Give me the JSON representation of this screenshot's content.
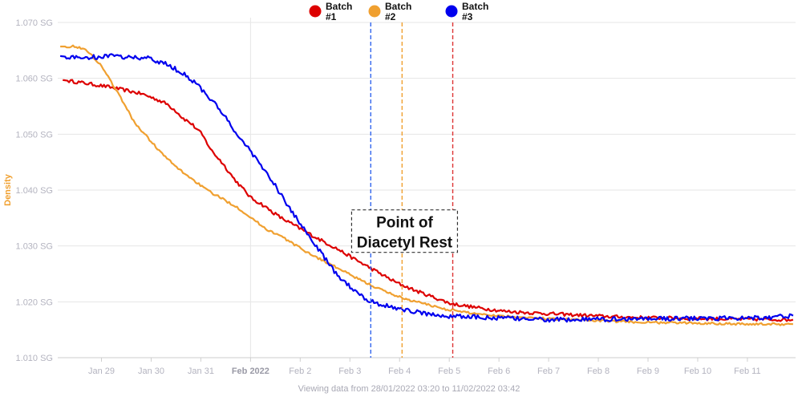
{
  "chart_data": {
    "type": "line",
    "title": "",
    "xlabel": "",
    "ylabel": "Density",
    "ylabel_color": "#f0a030",
    "footer": "Viewing data from 28/01/2022 03:20 to 11/02/2022 03:42",
    "x_range_days": [
      0,
      14.85
    ],
    "x_ticks": [
      {
        "label": "Jan 29",
        "day": 0.88,
        "bold": false
      },
      {
        "label": "Jan 30",
        "day": 1.88,
        "bold": false
      },
      {
        "label": "Jan 31",
        "day": 2.88,
        "bold": false
      },
      {
        "label": "Feb 2022",
        "day": 3.88,
        "bold": true
      },
      {
        "label": "Feb 2",
        "day": 4.88,
        "bold": false
      },
      {
        "label": "Feb 3",
        "day": 5.88,
        "bold": false
      },
      {
        "label": "Feb 4",
        "day": 6.88,
        "bold": false
      },
      {
        "label": "Feb 5",
        "day": 7.88,
        "bold": false
      },
      {
        "label": "Feb 6",
        "day": 8.88,
        "bold": false
      },
      {
        "label": "Feb 7",
        "day": 9.88,
        "bold": false
      },
      {
        "label": "Feb 8",
        "day": 10.88,
        "bold": false
      },
      {
        "label": "Feb 9",
        "day": 11.88,
        "bold": false
      },
      {
        "label": "Feb 10",
        "day": 12.88,
        "bold": false
      },
      {
        "label": "Feb 11",
        "day": 13.88,
        "bold": false
      }
    ],
    "ylim": [
      1.01,
      1.07
    ],
    "y_ticks": [
      {
        "label": "1.010 SG",
        "value": 1.01
      },
      {
        "label": "1.020 SG",
        "value": 1.02
      },
      {
        "label": "1.030 SG",
        "value": 1.03
      },
      {
        "label": "1.040 SG",
        "value": 1.04
      },
      {
        "label": "1.050 SG",
        "value": 1.05
      },
      {
        "label": "1.060 SG",
        "value": 1.06
      },
      {
        "label": "1.070 SG",
        "value": 1.07
      }
    ],
    "grid": true,
    "legend_position": "top-center",
    "series": [
      {
        "name": "Batch #1",
        "label_lines": [
          "Batch",
          "#1"
        ],
        "color": "#dd0000",
        "noise": 0.0003,
        "points": [
          [
            0.1,
            1.0597
          ],
          [
            0.5,
            1.0592
          ],
          [
            1.0,
            1.0585
          ],
          [
            1.4,
            1.0578
          ],
          [
            1.7,
            1.0572
          ],
          [
            2.0,
            1.0562
          ],
          [
            2.2,
            1.0554
          ],
          [
            2.4,
            1.054
          ],
          [
            2.5,
            1.053
          ],
          [
            2.7,
            1.0518
          ],
          [
            2.9,
            1.05
          ],
          [
            3.1,
            1.047
          ],
          [
            3.3,
            1.045
          ],
          [
            3.55,
            1.042
          ],
          [
            3.7,
            1.0405
          ],
          [
            3.9,
            1.0385
          ],
          [
            4.1,
            1.0375
          ],
          [
            4.3,
            1.0362
          ],
          [
            4.5,
            1.035
          ],
          [
            4.8,
            1.0335
          ],
          [
            5.2,
            1.0315
          ],
          [
            5.6,
            1.0296
          ],
          [
            6.0,
            1.0275
          ],
          [
            6.4,
            1.0255
          ],
          [
            6.8,
            1.0235
          ],
          [
            7.2,
            1.022
          ],
          [
            7.6,
            1.0207
          ],
          [
            7.9,
            1.0197
          ],
          [
            8.4,
            1.019
          ],
          [
            9.0,
            1.0183
          ],
          [
            9.6,
            1.018
          ],
          [
            10.3,
            1.0177
          ],
          [
            11.0,
            1.0174
          ],
          [
            11.6,
            1.0172
          ],
          [
            12.3,
            1.0171
          ],
          [
            13.0,
            1.017
          ],
          [
            13.6,
            1.0169
          ],
          [
            14.8,
            1.0168
          ]
        ]
      },
      {
        "name": "Batch #2",
        "label_lines": [
          "Batch",
          "#2"
        ],
        "color": "#f0a030",
        "noise": 0.0002,
        "points": [
          [
            0.05,
            1.0657
          ],
          [
            0.35,
            1.0657
          ],
          [
            0.5,
            1.0654
          ],
          [
            0.7,
            1.064
          ],
          [
            0.9,
            1.062
          ],
          [
            1.1,
            1.059
          ],
          [
            1.3,
            1.056
          ],
          [
            1.55,
            1.052
          ],
          [
            1.85,
            1.049
          ],
          [
            2.1,
            1.0465
          ],
          [
            2.4,
            1.044
          ],
          [
            2.7,
            1.042
          ],
          [
            3.0,
            1.04
          ],
          [
            3.3,
            1.0385
          ],
          [
            3.6,
            1.037
          ],
          [
            3.9,
            1.035
          ],
          [
            4.2,
            1.033
          ],
          [
            4.5,
            1.0317
          ],
          [
            4.9,
            1.0295
          ],
          [
            5.2,
            1.028
          ],
          [
            5.6,
            1.0262
          ],
          [
            6.0,
            1.0243
          ],
          [
            6.3,
            1.023
          ],
          [
            6.6,
            1.0218
          ],
          [
            7.0,
            1.0205
          ],
          [
            7.4,
            1.0196
          ],
          [
            7.8,
            1.0187
          ],
          [
            8.3,
            1.018
          ],
          [
            8.9,
            1.0175
          ],
          [
            9.6,
            1.0171
          ],
          [
            10.4,
            1.0168
          ],
          [
            11.2,
            1.0165
          ],
          [
            12.0,
            1.0163
          ],
          [
            12.8,
            1.0162
          ],
          [
            13.5,
            1.0161
          ],
          [
            14.0,
            1.016
          ],
          [
            14.8,
            1.016
          ]
        ]
      },
      {
        "name": "Batch #3",
        "label_lines": [
          "Batch",
          "#3"
        ],
        "color": "#0000ee",
        "noise": 0.0004,
        "points": [
          [
            0.05,
            1.064
          ],
          [
            0.3,
            1.0637
          ],
          [
            0.8,
            1.0638
          ],
          [
            1.0,
            1.064
          ],
          [
            1.4,
            1.0638
          ],
          [
            1.8,
            1.0636
          ],
          [
            2.2,
            1.0625
          ],
          [
            2.5,
            1.061
          ],
          [
            2.8,
            1.059
          ],
          [
            3.0,
            1.057
          ],
          [
            3.3,
            1.054
          ],
          [
            3.55,
            1.0505
          ],
          [
            3.8,
            1.048
          ],
          [
            4.0,
            1.0455
          ],
          [
            4.2,
            1.043
          ],
          [
            4.4,
            1.0405
          ],
          [
            4.6,
            1.0375
          ],
          [
            4.8,
            1.035
          ],
          [
            5.0,
            1.0325
          ],
          [
            5.2,
            1.03
          ],
          [
            5.4,
            1.0275
          ],
          [
            5.6,
            1.025
          ],
          [
            5.8,
            1.0233
          ],
          [
            6.0,
            1.022
          ],
          [
            6.2,
            1.0205
          ],
          [
            6.5,
            1.0195
          ],
          [
            6.9,
            1.0187
          ],
          [
            7.2,
            1.0182
          ],
          [
            7.6,
            1.0176
          ],
          [
            8.0,
            1.0174
          ],
          [
            8.6,
            1.0172
          ],
          [
            9.2,
            1.017
          ],
          [
            9.9,
            1.0168
          ],
          [
            10.5,
            1.0168
          ],
          [
            11.2,
            1.0169
          ],
          [
            11.9,
            1.017
          ],
          [
            12.5,
            1.017
          ],
          [
            13.2,
            1.017
          ],
          [
            13.8,
            1.0172
          ],
          [
            14.3,
            1.0172
          ],
          [
            14.8,
            1.0175
          ]
        ]
      }
    ],
    "markers": [
      {
        "series": "Batch #3",
        "day": 6.3,
        "color": "#3366ee"
      },
      {
        "series": "Batch #2",
        "day": 6.93,
        "color": "#f0a030"
      },
      {
        "series": "Batch #1",
        "day": 7.95,
        "color": "#dd3333"
      }
    ],
    "annotations": [
      {
        "lines": [
          "Point of",
          "Diacetyl Rest"
        ],
        "day_center": 6.98,
        "value_center": 1.031
      }
    ]
  }
}
